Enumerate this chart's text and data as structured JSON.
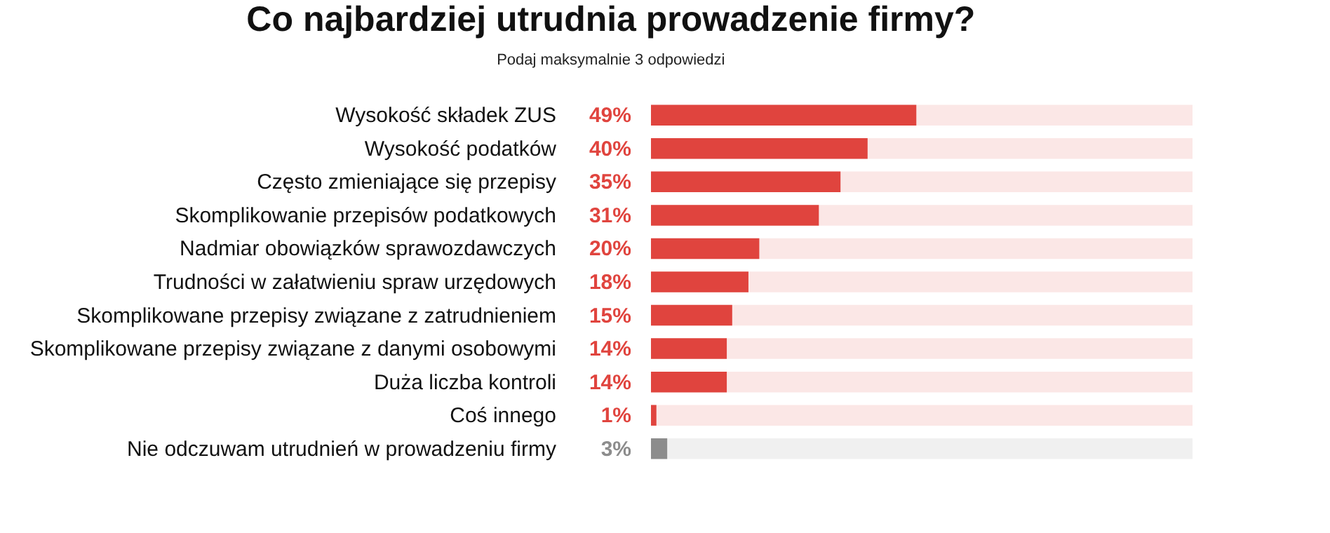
{
  "chart_data": {
    "type": "bar",
    "orientation": "horizontal",
    "title": "Co najbardziej utrudnia prowadzenie firmy?",
    "subtitle": "Podaj maksymalnie 3 odpowiedzi",
    "categories": [
      "Wysokość składek ZUS",
      "Wysokość podatków",
      "Często zmieniające się przepisy",
      "Skomplikowanie przepisów podatkowych",
      "Nadmiar obowiązków sprawozdawczych",
      "Trudności w załatwieniu spraw urzędowych",
      "Skomplikowane przepisy związane z zatrudnieniem",
      "Skomplikowane przepisy związane z danymi osobowymi",
      "Duża liczba kontroli",
      "Coś innego",
      "Nie odczuwam utrudnień w prowadzeniu firmy"
    ],
    "values": [
      49,
      40,
      35,
      31,
      20,
      18,
      15,
      14,
      14,
      1,
      3
    ],
    "colors": [
      "#e0443e",
      "#e0443e",
      "#e0443e",
      "#e0443e",
      "#e0443e",
      "#e0443e",
      "#e0443e",
      "#e0443e",
      "#e0443e",
      "#e0443e",
      "#8c8c8c"
    ],
    "value_labels": [
      "49%",
      "40%",
      "35%",
      "31%",
      "20%",
      "18%",
      "15%",
      "14%",
      "14%",
      "1%",
      "3%"
    ],
    "xlim": [
      0,
      100
    ],
    "tick_labels": "y",
    "grid": false
  }
}
